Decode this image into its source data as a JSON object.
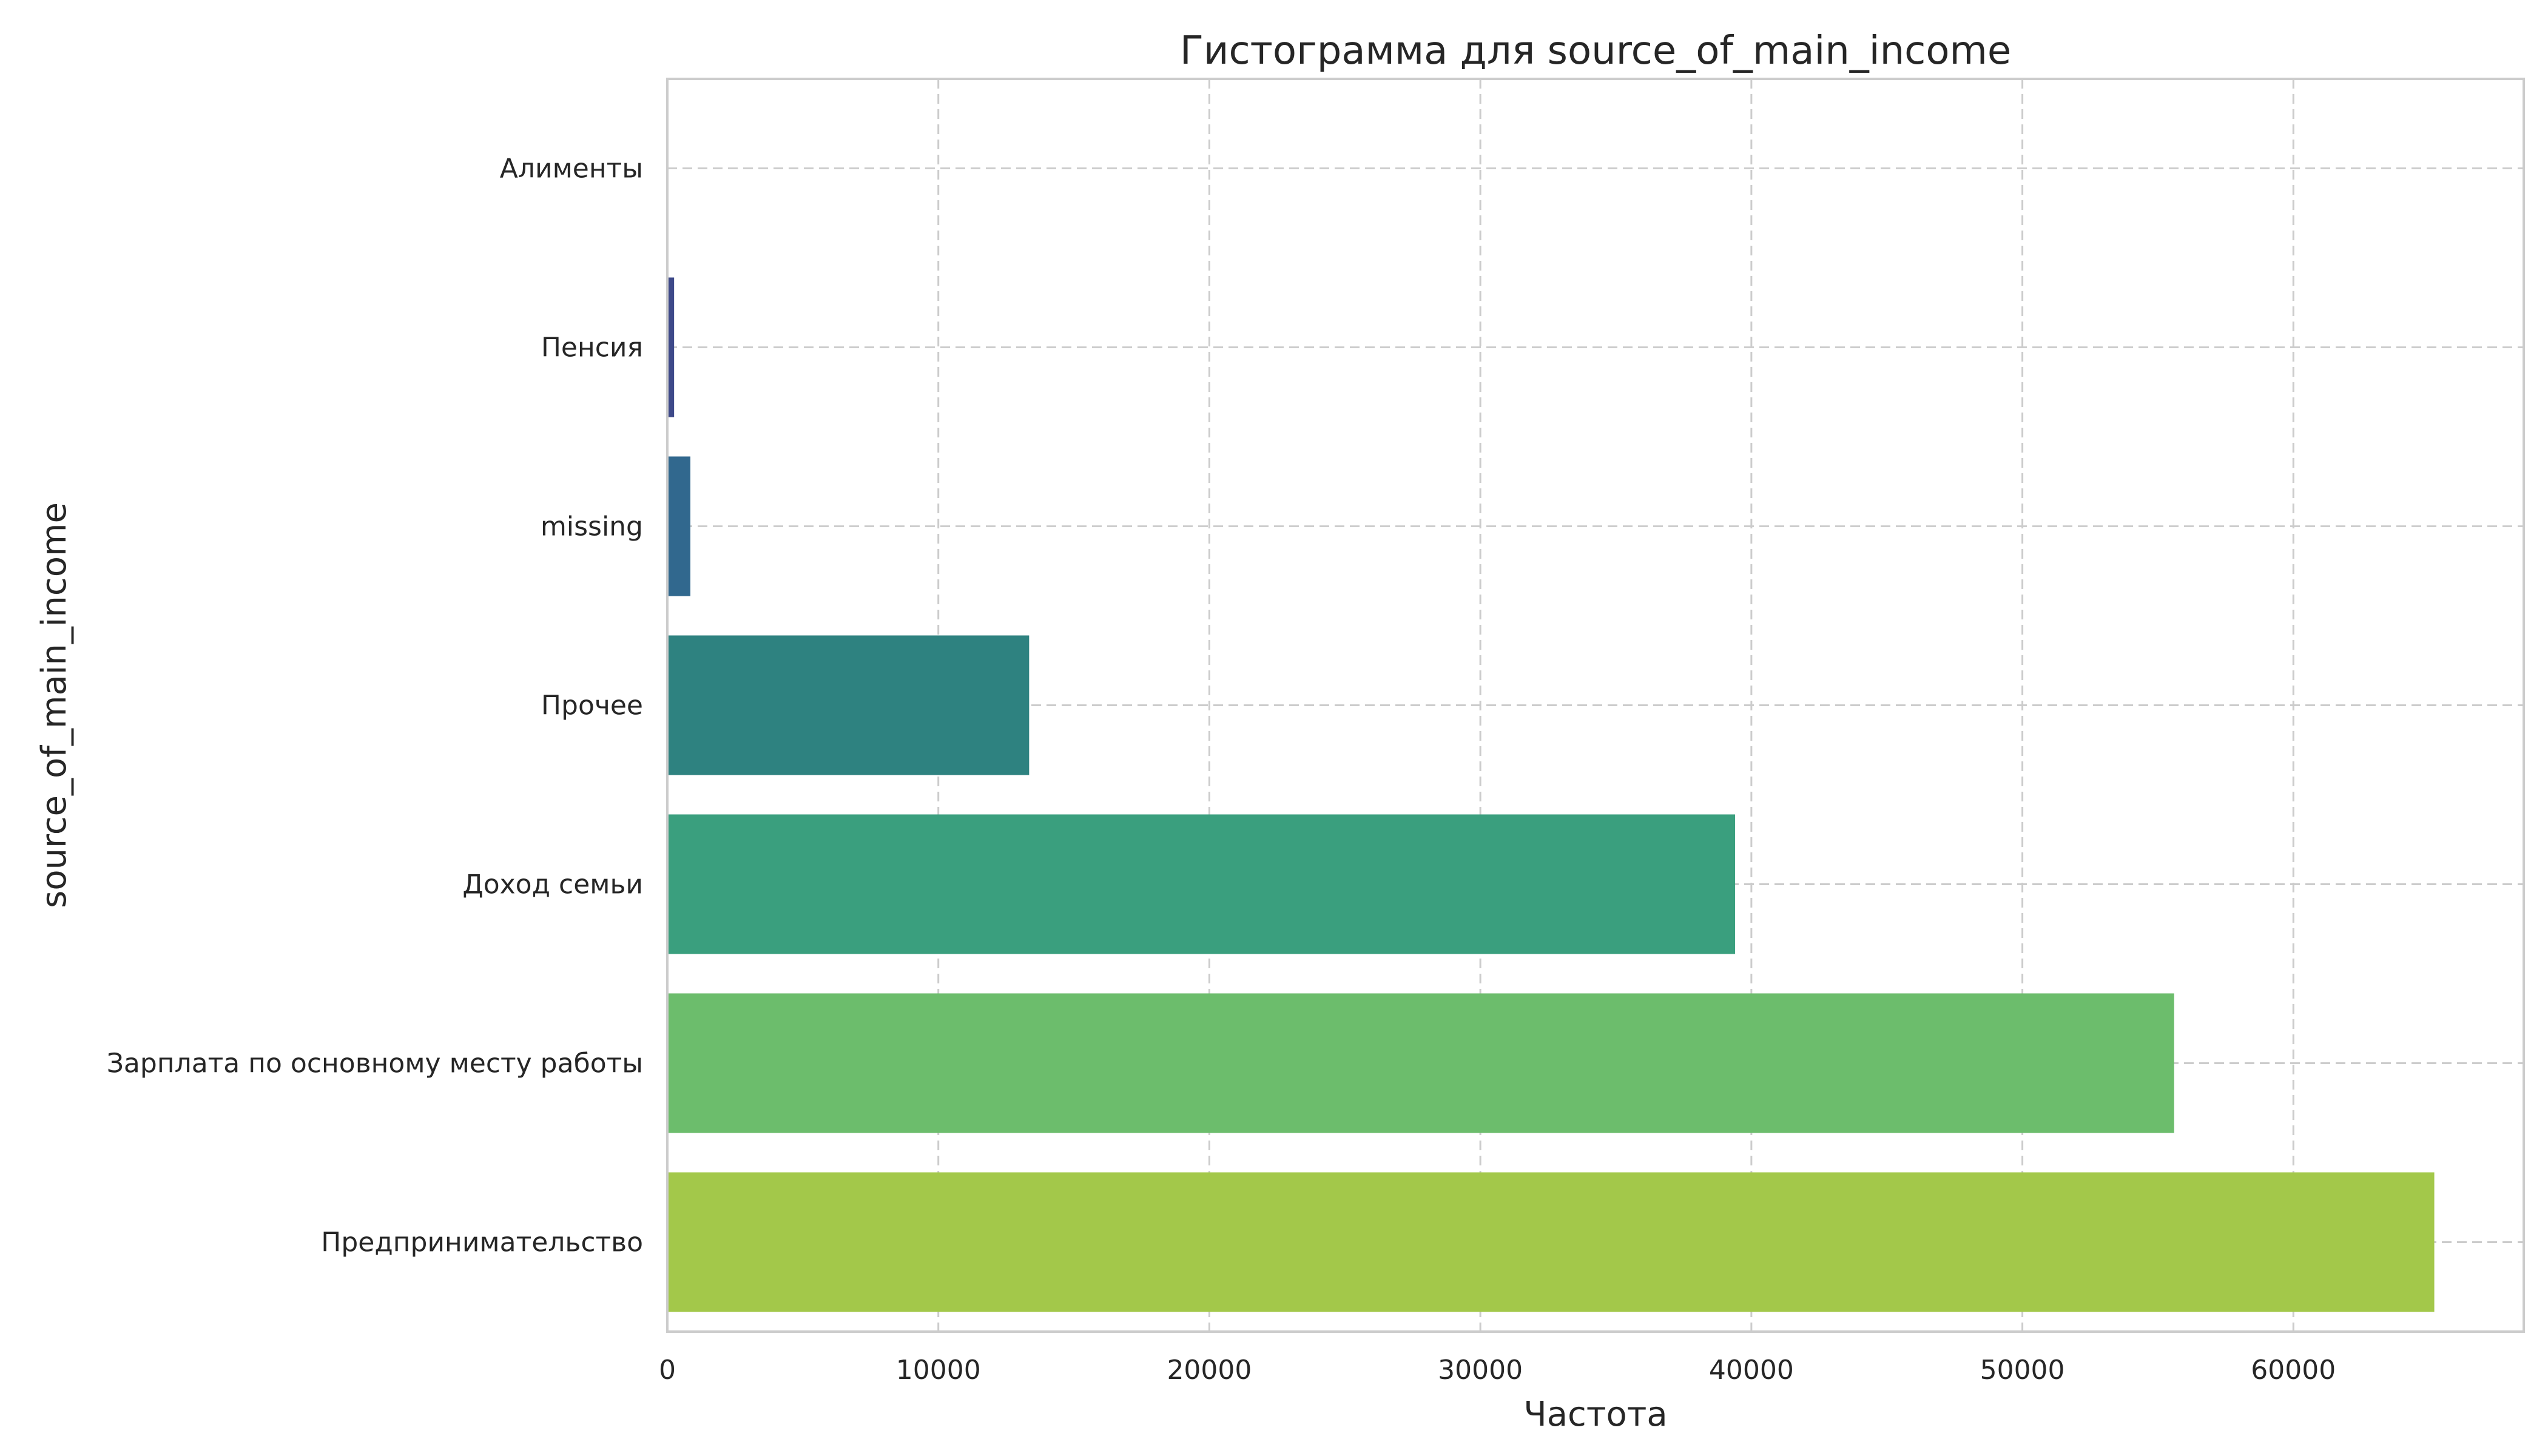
{
  "chart_data": {
    "type": "bar",
    "orientation": "horizontal",
    "title": "Гистограмма для source_of_main_income",
    "xlabel": "Частота",
    "ylabel": "source_of_main_income",
    "categories": [
      "Алименты",
      "Пенсия",
      "missing",
      "Прочее",
      "Доход семьи",
      "Зарплата по основному месту работы",
      "Предпринимательство"
    ],
    "values": [
      4,
      250,
      850,
      13350,
      39400,
      55600,
      65200
    ],
    "colors": [
      "#482878",
      "#3e4989",
      "#31688e",
      "#2e8280",
      "#3a9f7e",
      "#6cbd6c",
      "#a3c84a"
    ],
    "xlim": [
      0,
      68500
    ],
    "xticks": [
      0,
      10000,
      20000,
      30000,
      40000,
      50000,
      60000
    ],
    "xtick_labels": [
      "0",
      "10000",
      "20000",
      "30000",
      "40000",
      "50000",
      "60000"
    ],
    "grid": true,
    "legend": "none"
  }
}
